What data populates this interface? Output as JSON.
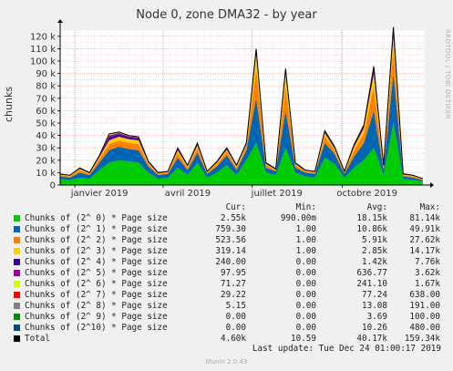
{
  "title": "Node 0, zone DMA32 - by year",
  "ylabel": "chunks",
  "watermark": "RRDTOOL / TOBI OETIKER",
  "legend_headers": {
    "cur": "Cur:",
    "min": "Min:",
    "avg": "Avg:",
    "max": "Max:"
  },
  "legend": [
    {
      "name": "Chunks of (2^ 0) * Page size",
      "color": "#00cc00",
      "cur": "2.55k",
      "min": "990.00m",
      "avg": "18.15k",
      "max": "81.14k"
    },
    {
      "name": "Chunks of (2^ 1) * Page size",
      "color": "#0066b3",
      "cur": "759.30",
      "min": "1.00",
      "avg": "10.86k",
      "max": "49.91k"
    },
    {
      "name": "Chunks of (2^ 2) * Page size",
      "color": "#ff8000",
      "cur": "523.56",
      "min": "1.00",
      "avg": "5.91k",
      "max": "27.62k"
    },
    {
      "name": "Chunks of (2^ 3) * Page size",
      "color": "#ffcc00",
      "cur": "319.14",
      "min": "1.00",
      "avg": "2.85k",
      "max": "14.17k"
    },
    {
      "name": "Chunks of (2^ 4) * Page size",
      "color": "#330099",
      "cur": "240.00",
      "min": "0.00",
      "avg": "1.42k",
      "max": "7.76k"
    },
    {
      "name": "Chunks of (2^ 5) * Page size",
      "color": "#990099",
      "cur": "97.95",
      "min": "0.00",
      "avg": "636.77",
      "max": "3.62k"
    },
    {
      "name": "Chunks of (2^ 6) * Page size",
      "color": "#ccff00",
      "cur": "71.27",
      "min": "0.00",
      "avg": "241.10",
      "max": "1.67k"
    },
    {
      "name": "Chunks of (2^ 7) * Page size",
      "color": "#ff0000",
      "cur": "29.22",
      "min": "0.00",
      "avg": "77.24",
      "max": "638.00"
    },
    {
      "name": "Chunks of (2^ 8) * Page size",
      "color": "#808080",
      "cur": "5.15",
      "min": "0.00",
      "avg": "13.08",
      "max": "191.00"
    },
    {
      "name": "Chunks of (2^ 9) * Page size",
      "color": "#008f00",
      "cur": "0.00",
      "min": "0.00",
      "avg": "3.69",
      "max": "100.00"
    },
    {
      "name": "Chunks of (2^10) * Page size",
      "color": "#00487d",
      "cur": "0.00",
      "min": "0.00",
      "avg": "10.26",
      "max": "480.00"
    },
    {
      "name": "Total",
      "color": "#000000",
      "cur": "4.60k",
      "min": "10.59",
      "avg": "40.17k",
      "max": "159.34k"
    }
  ],
  "last_update": "Last update: Tue Dec 24 01:00:17 2019",
  "footer": "Munin 2.0.43",
  "chart_data": {
    "type": "area",
    "title": "Node 0, zone DMA32 - by year",
    "ylabel": "chunks",
    "ylim": [
      0,
      125000
    ],
    "yticks": [
      0,
      10000,
      20000,
      30000,
      40000,
      50000,
      60000,
      70000,
      80000,
      90000,
      100000,
      110000,
      120000
    ],
    "ytick_labels": [
      "0",
      "10 k",
      "20 k",
      "30 k",
      "40 k",
      "50 k",
      "60 k",
      "70 k",
      "80 k",
      "90 k",
      "100 k",
      "110 k",
      "120 k"
    ],
    "xlim": [
      "2018-12-17",
      "2019-12-24"
    ],
    "xticks": [
      "2019-01-01",
      "2019-04-01",
      "2019-07-01",
      "2019-10-01"
    ],
    "xtick_labels": [
      "janvier 2019",
      "avril 2019",
      "juillet 2019",
      "octobre 2019"
    ],
    "grid": true,
    "x": [
      "2018-12-17",
      "2018-12-27",
      "2019-01-06",
      "2019-01-16",
      "2019-01-26",
      "2019-02-05",
      "2019-02-15",
      "2019-02-25",
      "2019-03-07",
      "2019-03-17",
      "2019-03-27",
      "2019-04-06",
      "2019-04-16",
      "2019-04-26",
      "2019-05-06",
      "2019-05-16",
      "2019-05-26",
      "2019-06-05",
      "2019-06-15",
      "2019-06-25",
      "2019-07-05",
      "2019-07-15",
      "2019-07-25",
      "2019-08-04",
      "2019-08-14",
      "2019-08-24",
      "2019-09-03",
      "2019-09-13",
      "2019-09-23",
      "2019-10-03",
      "2019-10-13",
      "2019-10-23",
      "2019-11-02",
      "2019-11-12",
      "2019-11-22",
      "2019-12-02",
      "2019-12-12",
      "2019-12-22"
    ],
    "series": [
      {
        "name": "Chunks of (2^ 0) * Page size",
        "color": "#00cc00",
        "values": [
          5000,
          4000,
          6000,
          5000,
          12000,
          18000,
          20000,
          19000,
          18000,
          10000,
          5000,
          6000,
          14000,
          8000,
          18000,
          6000,
          10000,
          16000,
          8000,
          20000,
          34000,
          10000,
          8000,
          30000,
          10000,
          7000,
          6000,
          22000,
          17000,
          6000,
          14000,
          20000,
          30000,
          8000,
          50000,
          5000,
          4000,
          3000
        ]
      },
      {
        "name": "Chunks of (2^ 1) * Page size",
        "color": "#0066b3",
        "values": [
          2000,
          2000,
          4000,
          3000,
          6000,
          10000,
          11000,
          10000,
          10000,
          5000,
          3000,
          3000,
          8000,
          4000,
          8000,
          3000,
          5000,
          8000,
          4000,
          8000,
          36000,
          4000,
          3000,
          30000,
          4000,
          3000,
          3000,
          12000,
          8000,
          3000,
          9000,
          14000,
          30000,
          4000,
          40000,
          2000,
          2000,
          1000
        ]
      },
      {
        "name": "Chunks of (2^ 2) * Page size",
        "color": "#ff8000",
        "values": [
          1000,
          1000,
          2000,
          1000,
          3000,
          5000,
          5000,
          5000,
          5000,
          2000,
          1000,
          1000,
          4000,
          2000,
          4000,
          1000,
          2000,
          3000,
          2000,
          3000,
          24000,
          2000,
          1000,
          20000,
          2000,
          1000,
          1000,
          5000,
          3000,
          1000,
          5000,
          8000,
          20000,
          2000,
          20000,
          1000,
          1000,
          500
        ]
      },
      {
        "name": "Chunks of (2^ 3) * Page size",
        "color": "#ffcc00",
        "values": [
          500,
          500,
          1000,
          500,
          1500,
          3000,
          3000,
          3000,
          3000,
          1000,
          500,
          500,
          2000,
          1000,
          2000,
          500,
          1000,
          1500,
          1000,
          1500,
          12000,
          1000,
          500,
          10000,
          1000,
          500,
          500,
          3000,
          1500,
          500,
          3000,
          4000,
          10000,
          1000,
          10000,
          500,
          500,
          300
        ]
      },
      {
        "name": "Chunks of (2^ 4) * Page size",
        "color": "#330099",
        "values": [
          200,
          200,
          500,
          300,
          800,
          2500,
          2000,
          1500,
          1500,
          500,
          300,
          300,
          1000,
          500,
          1000,
          300,
          500,
          800,
          500,
          800,
          2500,
          500,
          300,
          2500,
          500,
          300,
          300,
          1000,
          800,
          300,
          1000,
          1500,
          4000,
          500,
          5000,
          300,
          200,
          200
        ]
      },
      {
        "name": "Chunks of (2^ 5) * Page size",
        "color": "#990099",
        "values": [
          100,
          100,
          200,
          150,
          300,
          1500,
          1000,
          800,
          800,
          300,
          150,
          150,
          500,
          300,
          500,
          150,
          300,
          400,
          300,
          400,
          800,
          300,
          150,
          800,
          300,
          150,
          150,
          500,
          400,
          150,
          500,
          600,
          1000,
          300,
          1500,
          150,
          100,
          100
        ]
      },
      {
        "name": "Chunks of (2^ 6) * Page size",
        "color": "#ccff00",
        "values": [
          50,
          50,
          100,
          80,
          150,
          800,
          500,
          400,
          400,
          150,
          80,
          80,
          250,
          150,
          250,
          80,
          150,
          200,
          150,
          200,
          400,
          150,
          80,
          400,
          150,
          80,
          80,
          250,
          200,
          80,
          250,
          300,
          500,
          150,
          600,
          80,
          50,
          50
        ]
      },
      {
        "name": "Chunks of (2^ 7) * Page size",
        "color": "#ff0000",
        "values": [
          20,
          20,
          40,
          30,
          60,
          300,
          200,
          150,
          150,
          60,
          30,
          30,
          100,
          60,
          100,
          30,
          60,
          80,
          60,
          80,
          150,
          60,
          30,
          150,
          60,
          30,
          30,
          100,
          80,
          30,
          100,
          120,
          200,
          60,
          250,
          30,
          20,
          20
        ]
      },
      {
        "name": "Chunks of (2^ 8) * Page size",
        "color": "#808080",
        "values": [
          5,
          5,
          10,
          8,
          15,
          60,
          40,
          30,
          30,
          15,
          8,
          8,
          20,
          15,
          20,
          8,
          15,
          20,
          15,
          20,
          30,
          15,
          8,
          30,
          15,
          8,
          8,
          20,
          20,
          8,
          20,
          25,
          40,
          15,
          50,
          8,
          5,
          5
        ]
      },
      {
        "name": "Chunks of (2^ 9) * Page size",
        "color": "#008f00",
        "values": [
          0,
          0,
          2,
          2,
          4,
          20,
          10,
          8,
          8,
          4,
          2,
          2,
          6,
          4,
          6,
          2,
          4,
          6,
          4,
          6,
          10,
          4,
          2,
          10,
          4,
          2,
          2,
          6,
          6,
          2,
          6,
          8,
          12,
          4,
          15,
          2,
          0,
          0
        ]
      },
      {
        "name": "Chunks of (2^10) * Page size",
        "color": "#00487d",
        "values": [
          0,
          0,
          5,
          5,
          10,
          60,
          30,
          20,
          20,
          10,
          5,
          5,
          15,
          10,
          15,
          5,
          10,
          15,
          10,
          15,
          30,
          10,
          5,
          30,
          10,
          5,
          5,
          15,
          15,
          5,
          15,
          20,
          40,
          10,
          50,
          5,
          0,
          0
        ]
      }
    ]
  }
}
